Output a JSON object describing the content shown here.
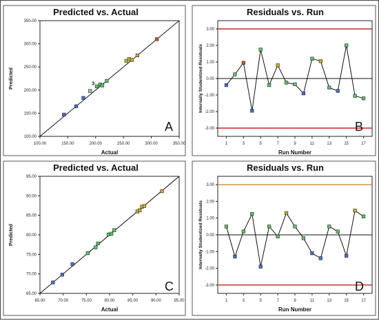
{
  "chart_data": [
    {
      "type": "scatter",
      "panel_label": "A",
      "title": "Predicted vs. Actual",
      "xlabel": "Actual",
      "ylabel": "Predicted",
      "xlim": [
        100,
        350
      ],
      "ylim": [
        100,
        350
      ],
      "xticks": [
        "100.00",
        "150.00",
        "200.00",
        "250.00",
        "300.00",
        "350.00"
      ],
      "yticks": [
        "100.00",
        "150.00",
        "200.00",
        "250.00",
        "300.00",
        "350.00"
      ],
      "reference_line": [
        [
          100,
          100
        ],
        [
          350,
          350
        ]
      ],
      "annotation": {
        "text": "3",
        "x": 202,
        "y": 212
      },
      "points": [
        {
          "x": 143,
          "y": 147,
          "color": "#4a6fd0"
        },
        {
          "x": 165,
          "y": 165,
          "color": "#4a6fd0"
        },
        {
          "x": 178,
          "y": 183,
          "color": "#4a6fd0"
        },
        {
          "x": 190,
          "y": 198,
          "color": "#8fd08f"
        },
        {
          "x": 202,
          "y": 208,
          "color": "#5ec46a"
        },
        {
          "x": 208,
          "y": 212,
          "color": "#5ec46a"
        },
        {
          "x": 212,
          "y": 210,
          "color": "#5ec46a"
        },
        {
          "x": 220,
          "y": 220,
          "color": "#5ec46a"
        },
        {
          "x": 255,
          "y": 263,
          "color": "#b8c830"
        },
        {
          "x": 260,
          "y": 267,
          "color": "#c8b028"
        },
        {
          "x": 265,
          "y": 265,
          "color": "#c8b028"
        },
        {
          "x": 275,
          "y": 275,
          "color": "#d8a828"
        },
        {
          "x": 310,
          "y": 310,
          "color": "#d05040"
        }
      ]
    },
    {
      "type": "line",
      "panel_label": "B",
      "title": "Residuals vs. Run",
      "xlabel": "Run Number",
      "ylabel": "Internally Studentized Residuals",
      "xlim": [
        0,
        18
      ],
      "ylim": [
        -3.5,
        3.5
      ],
      "xticks": [
        "1",
        "3",
        "5",
        "7",
        "9",
        "11",
        "13",
        "15",
        "17"
      ],
      "yticks": [
        "-3.00",
        "-2.00",
        "-1.00",
        "0.00",
        "1.00",
        "2.00",
        "3.00"
      ],
      "limit_lines": [
        3,
        -3
      ],
      "limit_color": "#cc2222",
      "x": [
        1,
        2,
        3,
        4,
        5,
        6,
        7,
        8,
        9,
        10,
        11,
        12,
        13,
        14,
        15,
        16,
        17
      ],
      "values": [
        -0.4,
        0.25,
        0.95,
        -1.95,
        1.75,
        -0.4,
        0.8,
        -0.25,
        -0.35,
        -0.9,
        1.2,
        1.05,
        -0.55,
        -0.75,
        2.0,
        -1.05,
        -1.2
      ],
      "point_colors": [
        "#4a6fd0",
        "#5ec46a",
        "#d05040",
        "#4a6fd0",
        "#5ec46a",
        "#5ec46a",
        "#c8b028",
        "#5ec46a",
        "#5ec46a",
        "#4a6fd0",
        "#5ec46a",
        "#c8b028",
        "#5ec46a",
        "#4a6fd0",
        "#5ec46a",
        "#5ec46a",
        "#5ec46a"
      ]
    },
    {
      "type": "scatter",
      "panel_label": "C",
      "title": "Predicted vs. Actual",
      "xlabel": "Actual",
      "ylabel": "Predicted",
      "xlim": [
        65,
        95
      ],
      "ylim": [
        65,
        95
      ],
      "xticks": [
        "65.00",
        "70.00",
        "75.00",
        "80.00",
        "85.00",
        "90.00",
        "95.00"
      ],
      "yticks": [
        "65.00",
        "70.00",
        "75.00",
        "80.00",
        "85.00",
        "90.00",
        "95.00"
      ],
      "reference_line": [
        [
          65,
          65
        ],
        [
          95,
          95
        ]
      ],
      "points": [
        {
          "x": 67.8,
          "y": 67.8,
          "color": "#4a6fd0"
        },
        {
          "x": 69.8,
          "y": 69.8,
          "color": "#4a6fd0"
        },
        {
          "x": 72.0,
          "y": 72.5,
          "color": "#4a6fd0"
        },
        {
          "x": 75.3,
          "y": 75.3,
          "color": "#5ec46a"
        },
        {
          "x": 77.0,
          "y": 76.8,
          "color": "#5ec46a"
        },
        {
          "x": 77.5,
          "y": 77.8,
          "color": "#5ec46a"
        },
        {
          "x": 79.8,
          "y": 80.1,
          "color": "#5ec46a"
        },
        {
          "x": 80.4,
          "y": 80.3,
          "color": "#5ec46a"
        },
        {
          "x": 81.0,
          "y": 81.2,
          "color": "#5ec46a"
        },
        {
          "x": 86.0,
          "y": 86.0,
          "color": "#c8b028"
        },
        {
          "x": 86.5,
          "y": 86.3,
          "color": "#c8b028"
        },
        {
          "x": 87.0,
          "y": 87.2,
          "color": "#c8b028"
        },
        {
          "x": 87.5,
          "y": 87.4,
          "color": "#c8b028"
        },
        {
          "x": 91.3,
          "y": 91.2,
          "color": "#d8a828"
        }
      ]
    },
    {
      "type": "line",
      "panel_label": "D",
      "title": "Residuals vs. Run",
      "xlabel": "Run Number",
      "ylabel": "Internally Studentized Residuals",
      "xlim": [
        0,
        18
      ],
      "ylim": [
        -3.5,
        3.5
      ],
      "xticks": [
        "1",
        "3",
        "5",
        "7",
        "9",
        "11",
        "13",
        "15",
        "17"
      ],
      "yticks": [
        "-3.00",
        "-2.00",
        "-1.00",
        "0.00",
        "1.00",
        "2.00",
        "3.00"
      ],
      "limit_lines": [
        3,
        -3
      ],
      "limit_colors": [
        "#c88a2a",
        "#cc2222"
      ],
      "x": [
        1,
        2,
        3,
        4,
        5,
        6,
        7,
        8,
        9,
        10,
        11,
        12,
        13,
        14,
        15,
        16,
        17
      ],
      "values": [
        0.5,
        -1.3,
        0.2,
        1.25,
        -1.9,
        0.5,
        -0.1,
        1.3,
        0.5,
        -0.2,
        -1.1,
        -1.4,
        0.5,
        0.2,
        -1.25,
        1.45,
        1.1
      ],
      "point_colors": [
        "#5ec46a",
        "#4a6fd0",
        "#5ec46a",
        "#5ec46a",
        "#4a6fd0",
        "#5ec46a",
        "#5ec46a",
        "#c8b028",
        "#5ec46a",
        "#5ec46a",
        "#4a6fd0",
        "#4a6fd0",
        "#5ec46a",
        "#5ec46a",
        "#4a6fd0",
        "#c8b028",
        "#5ec46a"
      ]
    }
  ]
}
